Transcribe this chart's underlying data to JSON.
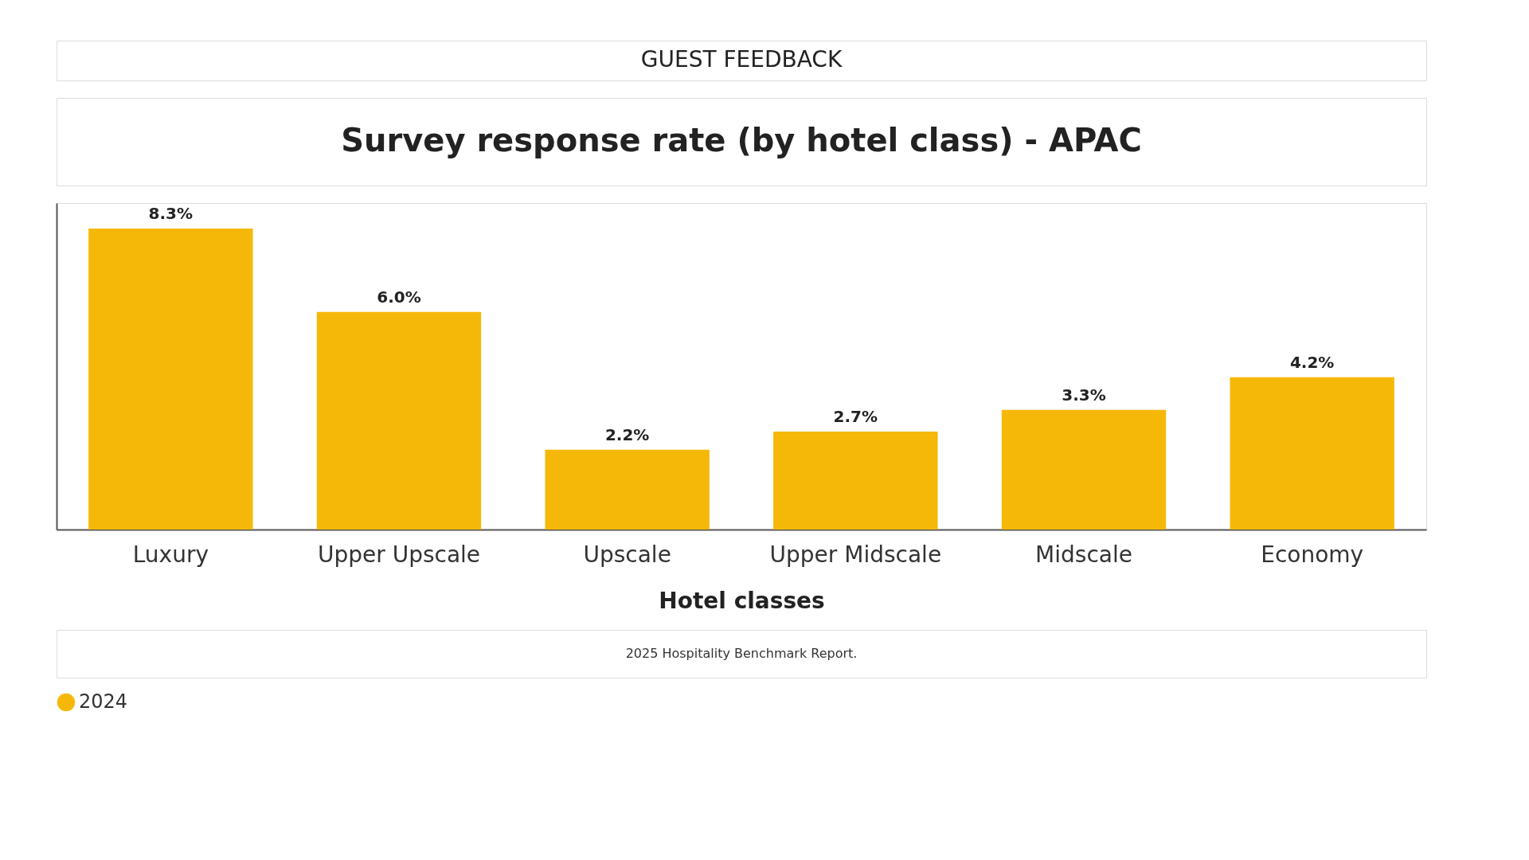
{
  "chart_data": {
    "type": "bar",
    "subtitle": "GUEST FEEDBACK",
    "title": "Survey response rate (by hotel class) - APAC",
    "xlabel": "Hotel classes",
    "categories": [
      "Luxury",
      "Upper Upscale",
      "Upscale",
      "Upper Midscale",
      "Midscale",
      "Economy"
    ],
    "series": [
      {
        "name": "2024",
        "color": "#f6b808",
        "values": [
          8.3,
          6.0,
          2.2,
          2.7,
          3.3,
          4.2
        ],
        "value_labels": [
          "8.3%",
          "6.0%",
          "2.2%",
          "2.7%",
          "3.3%",
          "4.2%"
        ]
      }
    ],
    "legend": "bottom",
    "grid": false,
    "annotations": [
      "2025 Hospitality Benchmark Report."
    ]
  }
}
